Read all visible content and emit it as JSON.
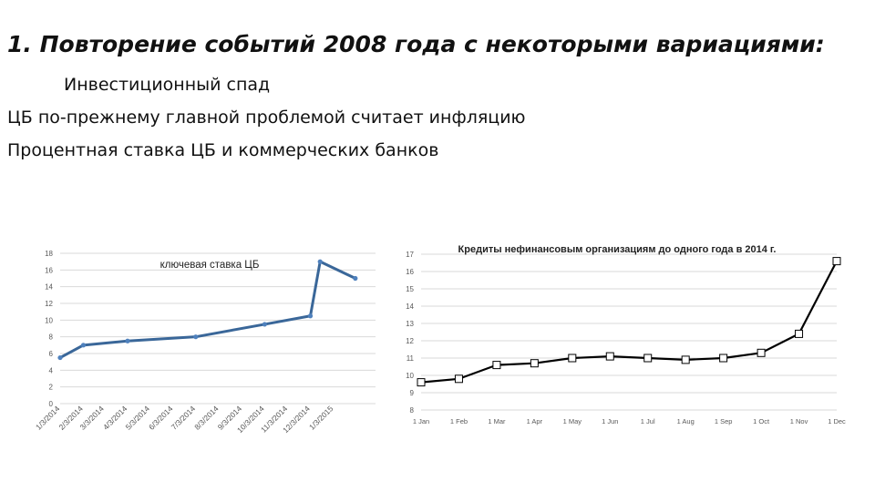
{
  "slide": {
    "title": "1.  Повторение событий 2008 года с некоторыми вариациями:",
    "lines": [
      "Инвестиционный спад",
      "ЦБ по-прежнему главной проблемой считает инфляцию",
      "Процентная ставка ЦБ и коммерческих банков"
    ]
  },
  "chart_data": [
    {
      "type": "line",
      "title": "ключевая ставка ЦБ",
      "xlabel": "",
      "ylabel": "",
      "ylim": [
        0,
        18
      ],
      "yticks": [
        0,
        2,
        4,
        6,
        8,
        10,
        12,
        14,
        16,
        18
      ],
      "grid": true,
      "color": "#3a6799",
      "categories": [
        "1/3/2014",
        "2/3/2014",
        "3/3/2014",
        "4/3/2014",
        "5/3/2014",
        "6/3/2014",
        "7/3/2014",
        "8/3/2014",
        "9/3/2014",
        "10/3/2014",
        "11/3/2014",
        "12/3/2014",
        "1/3/2015"
      ],
      "points": [
        {
          "x": "1/3/2014",
          "y": 5.5
        },
        {
          "x": "2/3/2014",
          "y": 7.0
        },
        {
          "x": "4/3/2014",
          "y": 7.5
        },
        {
          "x": "7/3/2014",
          "y": 8.0
        },
        {
          "x": "10/3/2014",
          "y": 9.5
        },
        {
          "x": "12/3/2014",
          "y": 10.5
        },
        {
          "x": "12/16/2014",
          "y": 17.0
        },
        {
          "x": "2/1/2015",
          "y": 15.0
        }
      ]
    },
    {
      "type": "line",
      "title": "Кредиты нефинансовым организациям до одного года в 2014 г.",
      "xlabel": "",
      "ylabel": "",
      "ylim": [
        8,
        17
      ],
      "yticks": [
        8,
        9,
        10,
        11,
        12,
        13,
        14,
        15,
        16,
        17
      ],
      "grid": true,
      "color": "#000000",
      "categories": [
        "1 Jan",
        "1 Feb",
        "1 Mar",
        "1 Apr",
        "1 May",
        "1 Jun",
        "1 Jul",
        "1 Aug",
        "1 Sep",
        "1 Oct",
        "1 Nov",
        "1 Dec"
      ],
      "values": [
        9.6,
        9.8,
        10.6,
        10.7,
        11.0,
        11.1,
        11.0,
        10.9,
        11.0,
        11.3,
        12.4,
        16.6
      ]
    }
  ]
}
